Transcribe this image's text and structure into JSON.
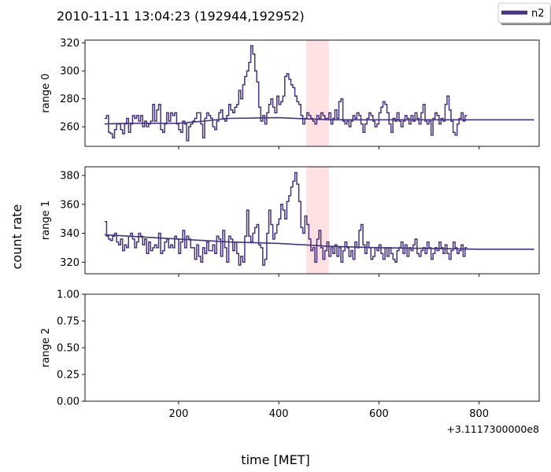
{
  "chart_data": {
    "type": "line",
    "title": "2010-11-11 13:04:23 (192944,192952)",
    "xlabel": "time [MET]",
    "ylabel": "count rate",
    "x_offset_label": "+3.1117300000e8",
    "x_ticks": [
      200,
      400,
      600,
      800
    ],
    "xlim": [
      13,
      920
    ],
    "legend": {
      "position": "top-right",
      "entries": [
        {
          "name": "n2",
          "color": "#45337d"
        }
      ]
    },
    "highlight_span": {
      "x0": 455,
      "x1": 500,
      "color": "#ffd6da"
    },
    "series_color": "#45337d",
    "panels": [
      {
        "name": "range 0",
        "ylim": [
          246,
          322
        ],
        "yticks": [
          260,
          280,
          300,
          320
        ],
        "step": {
          "x0": 52,
          "dx": 4,
          "y": [
            266,
            268,
            256,
            255,
            252,
            258,
            262,
            262,
            258,
            255,
            262,
            266,
            256,
            262,
            268,
            266,
            268,
            264,
            268,
            260,
            264,
            260,
            262,
            264,
            276,
            264,
            272,
            276,
            258,
            256,
            262,
            270,
            264,
            270,
            268,
            270,
            262,
            258,
            256,
            264,
            262,
            250,
            260,
            262,
            264,
            266,
            270,
            270,
            262,
            252,
            266,
            270,
            268,
            266,
            260,
            258,
            264,
            270,
            272,
            266,
            264,
            268,
            276,
            272,
            270,
            274,
            276,
            286,
            280,
            290,
            296,
            300,
            306,
            318,
            312,
            300,
            292,
            274,
            264,
            268,
            262,
            270,
            276,
            280,
            274,
            270,
            282,
            276,
            278,
            282,
            296,
            298,
            294,
            290,
            288,
            282,
            278,
            276,
            268,
            262,
            266,
            270,
            268,
            266,
            264,
            262,
            268,
            266,
            270,
            268,
            266,
            266,
            270,
            262,
            266,
            272,
            266,
            278,
            280,
            264,
            262,
            264,
            260,
            264,
            268,
            266,
            270,
            268,
            262,
            256,
            262,
            266,
            270,
            268,
            264,
            260,
            262,
            270,
            274,
            278,
            276,
            270,
            262,
            256,
            266,
            264,
            270,
            264,
            260,
            264,
            268,
            266,
            262,
            268,
            264,
            270,
            266,
            262,
            270,
            276,
            264,
            262,
            264,
            254,
            266,
            270,
            268,
            262,
            266,
            264,
            276,
            282,
            272,
            264,
            256,
            254,
            262,
            266,
            270,
            264,
            268
          ]
        },
        "model": {
          "x": [
            52,
            100,
            200,
            250,
            300,
            400,
            500,
            600,
            700,
            800,
            910
          ],
          "y": [
            262,
            262.5,
            262.5,
            264,
            266,
            266.5,
            265,
            265,
            265,
            265,
            265
          ]
        }
      },
      {
        "name": "range 1",
        "ylim": [
          312,
          386
        ],
        "yticks": [
          320,
          340,
          360,
          380
        ],
        "step": {
          "x0": 52,
          "dx": 4,
          "y": [
            348,
            338,
            336,
            335,
            338,
            340,
            334,
            332,
            336,
            328,
            332,
            330,
            338,
            340,
            336,
            330,
            334,
            340,
            338,
            332,
            336,
            326,
            334,
            328,
            330,
            332,
            330,
            340,
            326,
            328,
            334,
            336,
            330,
            332,
            330,
            338,
            336,
            326,
            334,
            342,
            330,
            338,
            336,
            330,
            330,
            322,
            332,
            324,
            320,
            330,
            326,
            334,
            328,
            328,
            332,
            326,
            338,
            336,
            324,
            342,
            330,
            320,
            338,
            336,
            328,
            334,
            326,
            318,
            324,
            320,
            338,
            356,
            338,
            334,
            340,
            344,
            346,
            332,
            330,
            318,
            322,
            340,
            356,
            346,
            336,
            340,
            346,
            350,
            360,
            356,
            350,
            362,
            366,
            372,
            376,
            382,
            374,
            362,
            344,
            340,
            352,
            346,
            336,
            328,
            330,
            320,
            336,
            342,
            330,
            322,
            328,
            334,
            324,
            330,
            326,
            332,
            324,
            330,
            320,
            328,
            334,
            330,
            324,
            328,
            322,
            334,
            330,
            342,
            346,
            332,
            326,
            334,
            330,
            322,
            324,
            330,
            328,
            332,
            326,
            322,
            330,
            324,
            330,
            326,
            322,
            320,
            328,
            330,
            334,
            326,
            332,
            324,
            330,
            328,
            332,
            336,
            326,
            324,
            328,
            330,
            326,
            334,
            330,
            322,
            326,
            330,
            328,
            334,
            330,
            326,
            332,
            326,
            322,
            328,
            334,
            330,
            326,
            328,
            332,
            324,
            330
          ]
        },
        "model": {
          "x": [
            52,
            100,
            200,
            300,
            400,
            500,
            600,
            700,
            800,
            910
          ],
          "y": [
            339,
            338,
            336,
            334,
            333,
            331,
            330,
            329.5,
            329,
            329
          ]
        }
      },
      {
        "name": "range 2",
        "ylim": [
          0,
          1
        ],
        "yticks": [
          0,
          0.25,
          0.5,
          0.75,
          1.0
        ],
        "ytick_labels": [
          "0.00",
          "0.25",
          "0.50",
          "0.75",
          "1.00"
        ],
        "step": {
          "x0": 52,
          "dx": 4,
          "y": []
        },
        "model": {
          "x": [],
          "y": []
        }
      }
    ]
  }
}
